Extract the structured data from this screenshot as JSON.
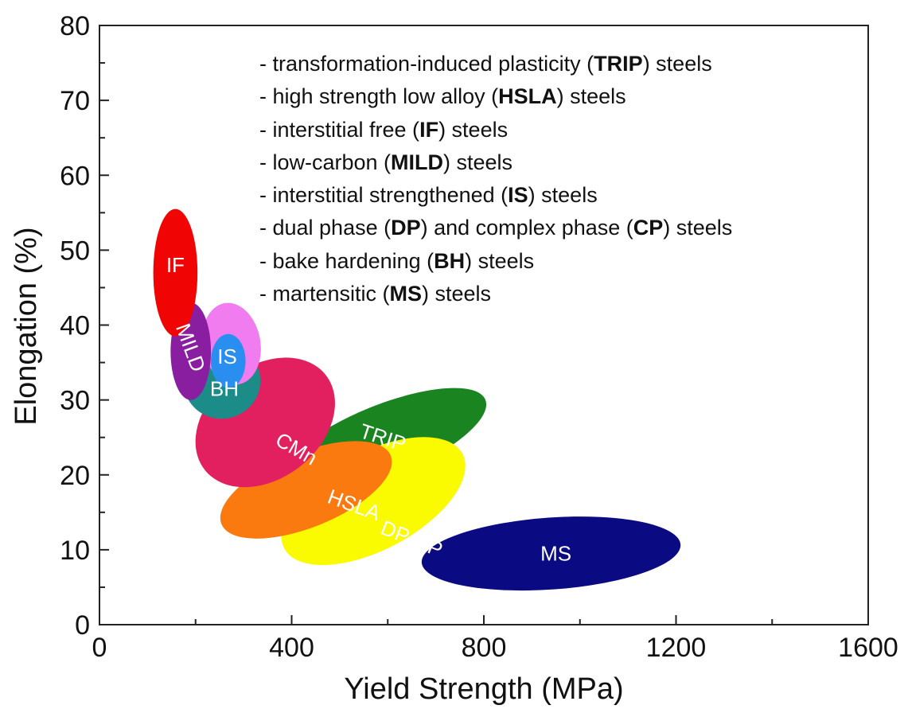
{
  "chart_data": {
    "type": "scatter",
    "xlabel": "Yield Strength (MPa)",
    "ylabel": "Elongation (%)",
    "xlim": [
      0,
      1600
    ],
    "ylim": [
      0,
      80
    ],
    "xticks": [
      "0",
      "400",
      "800",
      "1200",
      "1600"
    ],
    "yticks": [
      "0",
      "10",
      "20",
      "30",
      "40",
      "50",
      "60",
      "70",
      "80"
    ],
    "regions": [
      {
        "label": "MS",
        "color": "#0a0a82",
        "cx": 940,
        "cy": 9.5,
        "rx": 270,
        "ry": 4.8,
        "angle": -4,
        "label_x": 950,
        "label_y": 9.5,
        "label_angle": 0
      },
      {
        "label": "TRIP",
        "color": "#1a8420",
        "cx": 590,
        "cy": 24.5,
        "rx": 230,
        "ry": 4.8,
        "angle": -22,
        "label_x": 590,
        "label_y": 25,
        "label_angle": 18
      },
      {
        "label": "DP-CP",
        "color": "#fafa00",
        "cx": 570,
        "cy": 16.5,
        "rx": 210,
        "ry": 6.5,
        "angle": -28,
        "label_x": 650,
        "label_y": 11.5,
        "label_angle": 22
      },
      {
        "label": "HSLA",
        "color": "#fa7a10",
        "cx": 430,
        "cy": 18,
        "rx": 190,
        "ry": 5,
        "angle": -22,
        "label_x": 530,
        "label_y": 16,
        "label_angle": 20
      },
      {
        "label": "CMn",
        "color": "#e22060",
        "cx": 345,
        "cy": 27,
        "rx": 160,
        "ry": 7.5,
        "angle": -38,
        "label_x": 410,
        "label_y": 23.5,
        "label_angle": 30
      },
      {
        "label": "BH",
        "color": "#1b8c88",
        "cx": 255,
        "cy": 32.5,
        "rx": 80,
        "ry": 5,
        "angle": -15,
        "label_x": 260,
        "label_y": 31.5,
        "label_angle": 0
      },
      {
        "label": "IS",
        "color": "#f07cf0",
        "cx": 275,
        "cy": 37.5,
        "rx": 60,
        "ry": 5.5,
        "angle": -10,
        "label_x": 0,
        "label_y": 0,
        "label_angle": 0
      },
      {
        "label": "IS",
        "color": "#2a8ef0",
        "cx": 268,
        "cy": 35.2,
        "rx": 36,
        "ry": 3.6,
        "angle": 0,
        "label_x": 266,
        "label_y": 35.8,
        "label_angle": 0
      },
      {
        "label": "MILD",
        "color": "#8a1ea0",
        "cx": 190,
        "cy": 36.5,
        "rx": 42,
        "ry": 6.5,
        "angle": 0,
        "label_x": 190,
        "label_y": 37,
        "label_angle": 70
      },
      {
        "label": "IF",
        "color": "#f00404",
        "cx": 158,
        "cy": 47,
        "rx": 46,
        "ry": 8.5,
        "angle": 0,
        "label_x": 158,
        "label_y": 48,
        "label_angle": 0
      }
    ]
  },
  "legend": {
    "items": [
      {
        "pre": "- transformation-induced plasticity (",
        "bold": "TRIP",
        "post": ") steels"
      },
      {
        "pre": "- high strength low alloy (",
        "bold": "HSLA",
        "post": ") steels"
      },
      {
        "pre": "- interstitial free (",
        "bold": "IF",
        "post": ") steels"
      },
      {
        "pre": "- low-carbon (",
        "bold": "MILD",
        "post": ") steels"
      },
      {
        "pre": "- interstitial strengthened (",
        "bold": "IS",
        "post": ") steels"
      },
      {
        "pre": "- dual phase (",
        "bold": "DP",
        "mid": ") and complex phase (",
        "bold2": "CP",
        "post": ") steels"
      },
      {
        "pre": "- bake hardening (",
        "bold": "BH",
        "post": ") steels"
      },
      {
        "pre": "- martensitic (",
        "bold": "MS",
        "post": ") steels"
      }
    ]
  }
}
